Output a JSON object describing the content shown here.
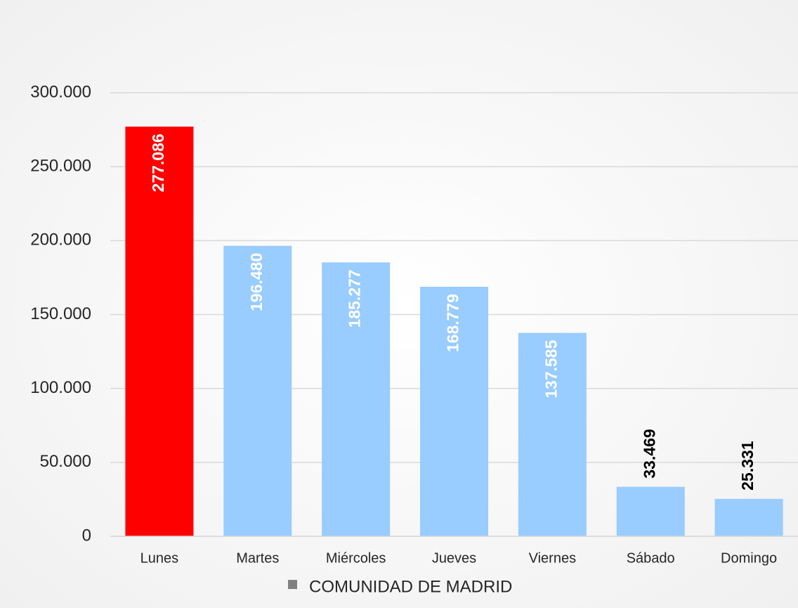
{
  "chart_data": {
    "type": "bar",
    "categories": [
      "Lunes",
      "Martes",
      "Miércoles",
      "Jueves",
      "Viernes",
      "Sábado",
      "Domingo"
    ],
    "series": [
      {
        "name": "COMUNIDAD DE MADRID",
        "color": "#808080",
        "values": [
          277086,
          196480,
          185277,
          168779,
          137585,
          33469,
          25331
        ],
        "value_labels": [
          "277.086",
          "196.480",
          "185.277",
          "168.779",
          "137.585",
          "33.469",
          "25.331"
        ],
        "colors": [
          "#ff0000",
          "#99ccff",
          "#99ccff",
          "#99ccff",
          "#99ccff",
          "#99ccff",
          "#99ccff"
        ]
      }
    ],
    "ylim": [
      0,
      300000
    ],
    "yticks": [
      0,
      {
        "value": 50000,
        "label": "50.000"
      },
      {
        "value": 100000,
        "label": "100.000"
      },
      {
        "value": 150000,
        "label": "150.000"
      },
      {
        "value": 200000,
        "label": "200.000"
      },
      {
        "value": 250000,
        "label": "250.000"
      },
      {
        "value": 300000,
        "label": "300.000"
      }
    ],
    "grid": true,
    "legend": "bottom"
  }
}
